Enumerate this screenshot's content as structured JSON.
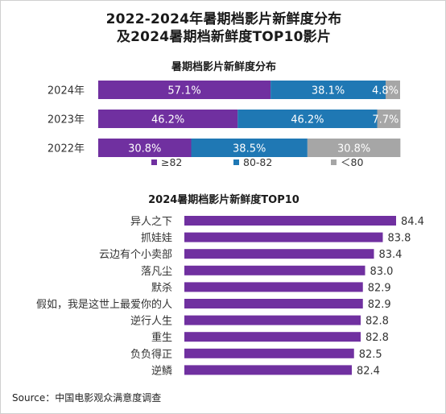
{
  "title_line1": "2022-2024年暑期档影片新鲜度分布",
  "title_line2": "及2024暑期档新鲜度TOP10影片",
  "source": "Source：中国电影观众满意度调查",
  "colors": {
    "purple": "#7030a0",
    "blue": "#1f78b4",
    "gray": "#a6a6a6"
  },
  "chart_data": [
    {
      "type": "bar",
      "stacked": true,
      "orientation": "horizontal",
      "title": "暑期档影片新鲜度分布",
      "categories": [
        "2024年",
        "2023年",
        "2022年"
      ],
      "series": [
        {
          "name": "≥82",
          "values": [
            57.1,
            46.2,
            30.8
          ],
          "labels": [
            "57.1%",
            "46.2%",
            "30.8%"
          ],
          "color": "#7030a0"
        },
        {
          "name": "80-82",
          "values": [
            38.1,
            46.2,
            38.5
          ],
          "labels": [
            "38.1%",
            "46.2%",
            "38.5%"
          ],
          "color": "#1f78b4"
        },
        {
          "name": "＜80",
          "values": [
            4.8,
            7.7,
            30.8
          ],
          "labels": [
            "4.8%",
            "7.7%",
            "30.8%"
          ],
          "color": "#a6a6a6"
        }
      ],
      "legend_position": "bottom",
      "xlim": [
        0,
        100
      ]
    },
    {
      "type": "bar",
      "orientation": "horizontal",
      "title": "2024暑期档影片新鲜度TOP10",
      "categories": [
        "异人之下",
        "抓娃娃",
        "云边有个小卖部",
        "落凡尘",
        "默杀",
        "假如，我是这世上最爱你的人",
        "逆行人生",
        "重生",
        "负负得正",
        "逆鳞"
      ],
      "values": [
        84.4,
        83.8,
        83.4,
        83.0,
        82.9,
        82.9,
        82.8,
        82.8,
        82.5,
        82.4
      ],
      "labels": [
        "84.4",
        "83.8",
        "83.4",
        "83.0",
        "82.9",
        "82.9",
        "82.8",
        "82.8",
        "82.5",
        "82.4"
      ],
      "color": "#7030a0"
    }
  ]
}
